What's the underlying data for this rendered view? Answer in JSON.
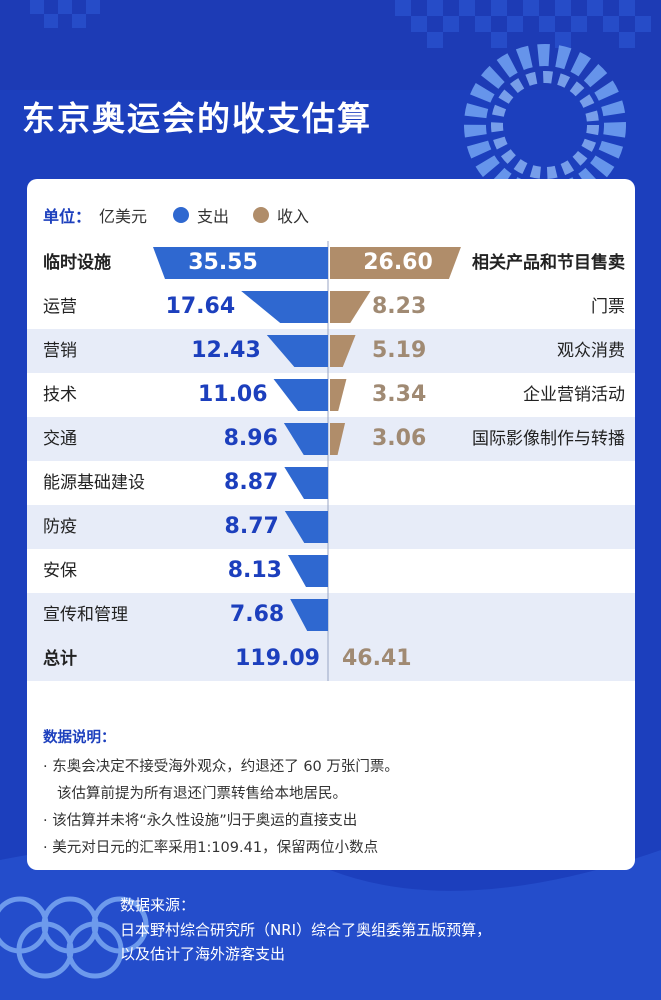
{
  "title": "东京奥运会的收支估算",
  "legend": {
    "unit_label": "单位：",
    "unit_value": "亿美元",
    "expense_label": "支出",
    "income_label": "收入"
  },
  "colors": {
    "expense": "#2f68d0",
    "income": "#b08d6a",
    "header_blue": "#1c3fbd",
    "row_band": "#e7ecf8"
  },
  "chart_data": {
    "type": "bar",
    "orientation": "butterfly",
    "unit": "亿美元",
    "series": [
      {
        "name": "支出",
        "categories": [
          "临时设施",
          "运营",
          "营销",
          "技术",
          "交通",
          "能源基础建设",
          "防疫",
          "安保",
          "宣传和管理"
        ],
        "values": [
          35.55,
          17.64,
          12.43,
          11.06,
          8.96,
          8.87,
          8.77,
          8.13,
          7.68
        ],
        "value_labels": [
          "35.55",
          "17.64",
          "12.43",
          "11.06",
          "8.96",
          "8.87",
          "8.77",
          "8.13",
          "7.68"
        ]
      },
      {
        "name": "收入",
        "categories": [
          "相关产品和节目售卖",
          "门票",
          "观众消费",
          "企业营销活动",
          "国际影像制作与转播"
        ],
        "values": [
          26.6,
          8.23,
          5.19,
          3.34,
          3.06
        ],
        "value_labels": [
          "26.60",
          "8.23",
          "5.19",
          "3.34",
          "3.06"
        ]
      }
    ],
    "totals": {
      "label": "总计",
      "expense": "119.09",
      "income": "46.41"
    }
  },
  "notes": {
    "title": "数据说明：",
    "lines": [
      "· 东奥会决定不接受海外观众，约退还了 60 万张门票。",
      "该估算前提为所有退还门票转售给本地居民。",
      "· 该估算并未将“永久性设施”归于奥运的直接支出",
      "· 美元对日元的汇率采用1:109.41，保留两位小数点"
    ]
  },
  "source": {
    "lines": [
      "数据来源：",
      "日本野村综合研究所（NRI）综合了奥组委第五版预算，",
      "以及估计了海外游客支出"
    ]
  }
}
